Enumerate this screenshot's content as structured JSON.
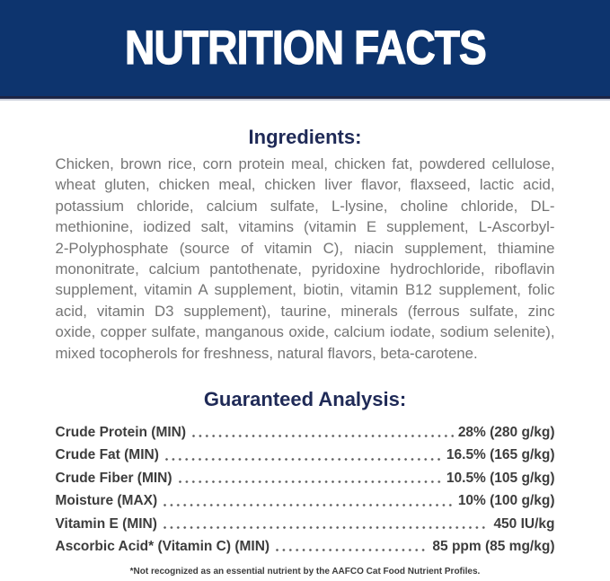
{
  "banner": {
    "title": "NUTRITION FACTS",
    "background_color": "#0d346e",
    "text_color": "#ffffff"
  },
  "ingredients": {
    "heading": "Ingredients:",
    "lines": [
      "Chicken, brown rice, corn protein meal, chicken fat, powdered cellulose,",
      "wheat gluten, chicken meal, chicken liver flavor, flaxseed, lactic acid,",
      "potassium chloride, calcium sulfate, L-lysine, choline chloride, DL-",
      "methionine, iodized salt, vitamins (vitamin E supplement, L-Ascorbyl-",
      "2-Polyphosphate (source of vitamin C), niacin supplement, thiamine",
      "mononitrate, calcium pantothenate, pyridoxine hydrochloride, riboflavin",
      "supplement, vitamin A supplement, biotin, vitamin B12 supplement, folic",
      "acid, vitamin D3 supplement), taurine, minerals (ferrous sulfate, zinc",
      "oxide, copper sulfate, manganous oxide, calcium iodate, sodium selenite),",
      "mixed tocopherols for freshness, natural flavors, beta-carotene."
    ]
  },
  "analysis": {
    "heading": "Guaranteed Analysis:",
    "rows": [
      {
        "label": "Crude Protein (MIN)",
        "value": "28% (280 g/kg)"
      },
      {
        "label": "Crude Fat (MIN)",
        "value": "16.5% (165 g/kg)"
      },
      {
        "label": "Crude Fiber (MIN)",
        "value": "10.5% (105 g/kg)"
      },
      {
        "label": "Moisture (MAX)",
        "value": "10% (100 g/kg)"
      },
      {
        "label": "Vitamin E (MIN)",
        "value": "450 IU/kg"
      },
      {
        "label": "Ascorbic Acid* (Vitamin C) (MIN)",
        "value": "85 ppm (85 mg/kg)"
      }
    ]
  },
  "footnote": "*Not recognized as an essential nutrient by the AAFCO Cat Food Nutrient Profiles.",
  "colors": {
    "banner_blue": "#0d346e",
    "banner_border": "#1c2546",
    "heading_navy": "#1f2a57",
    "body_gray": "#757575",
    "analysis_text": "#3d3d3d"
  }
}
